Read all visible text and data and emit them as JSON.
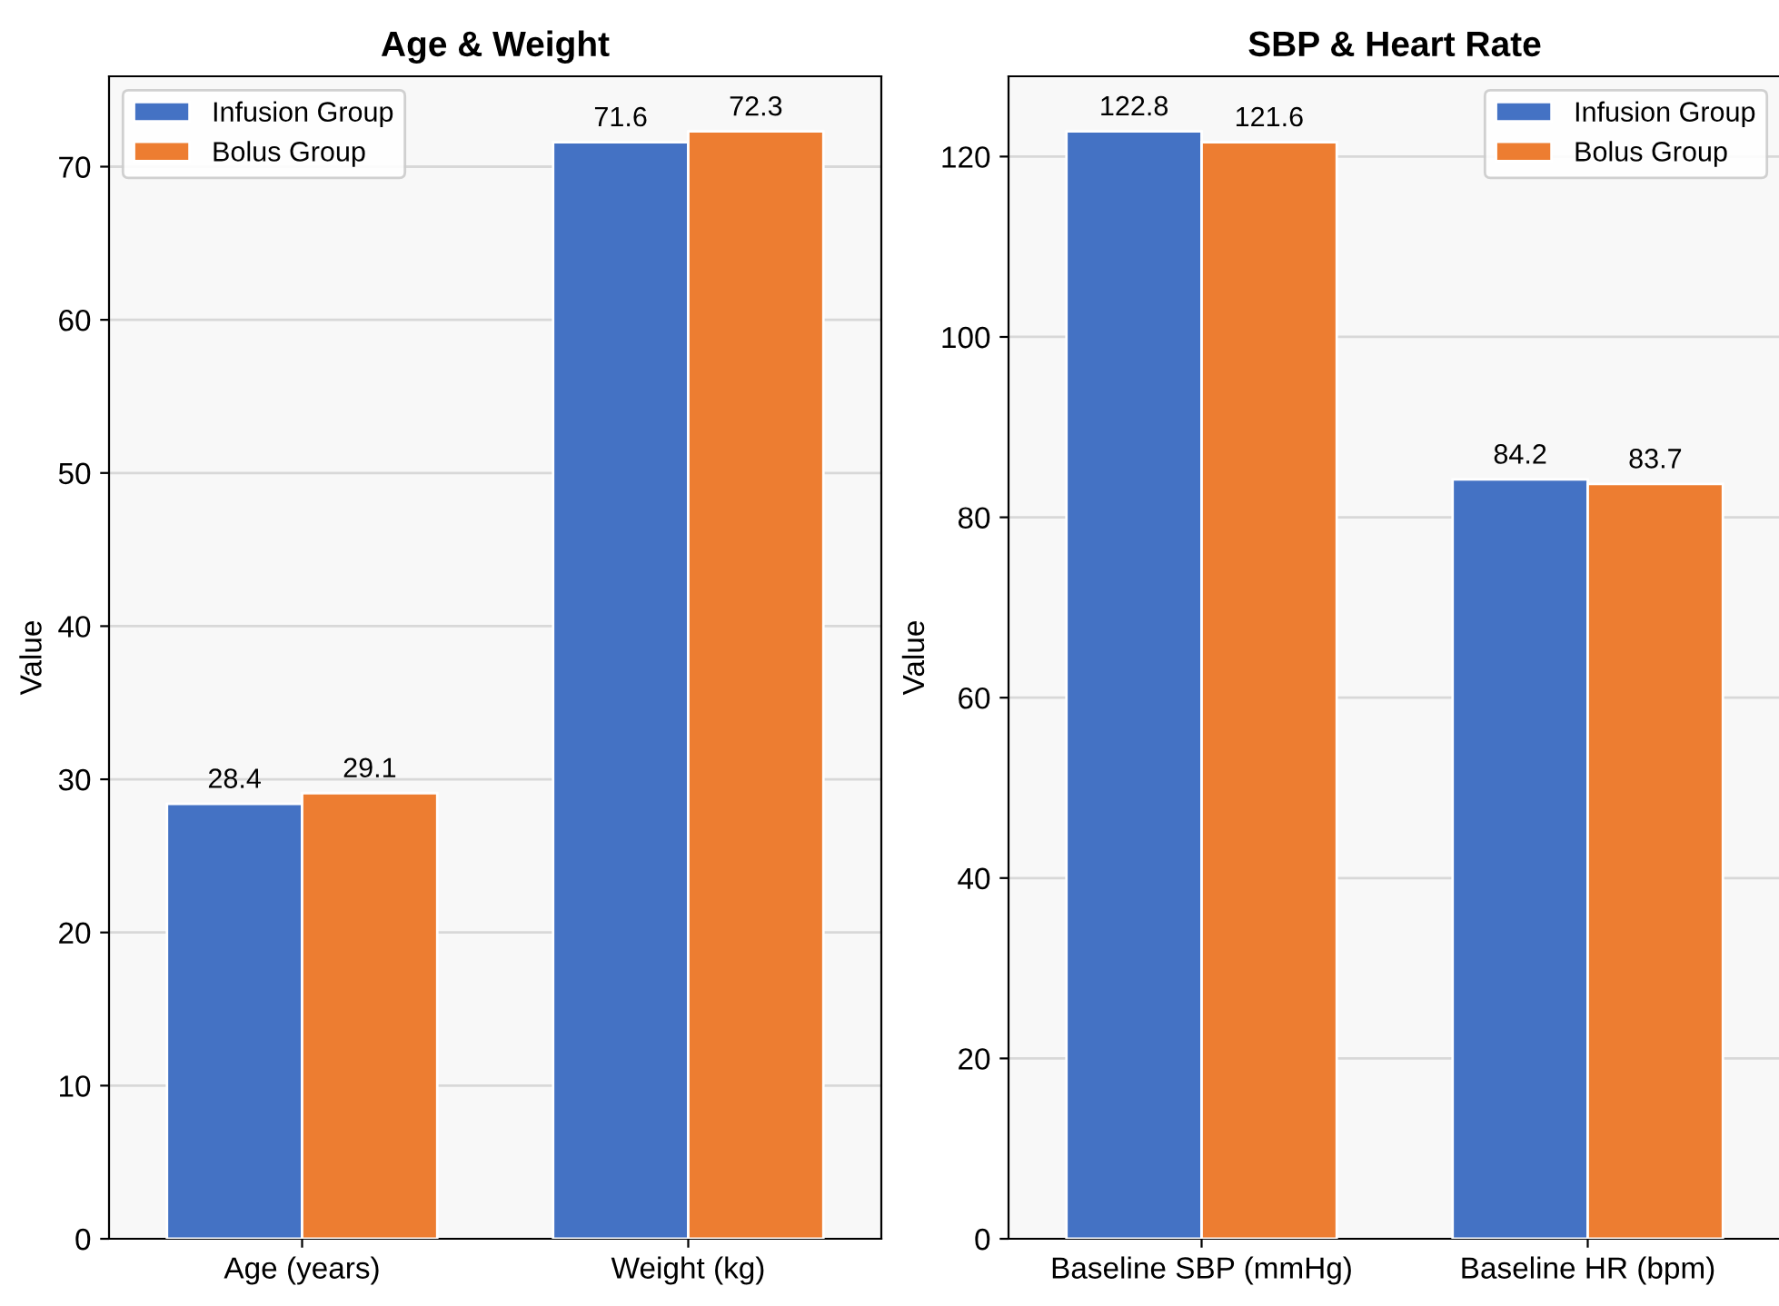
{
  "chart_data": [
    {
      "type": "bar",
      "title": "Age & Weight",
      "ylabel": "Value",
      "categories": [
        "Age (years)",
        "Weight (kg)"
      ],
      "series": [
        {
          "name": "Infusion Group",
          "color": "#4472c4",
          "values": [
            28.4,
            71.6
          ]
        },
        {
          "name": "Bolus Group",
          "color": "#ed7d31",
          "values": [
            29.1,
            72.3
          ]
        }
      ],
      "ylim": [
        0,
        75.9
      ],
      "yticks": [
        0,
        10,
        20,
        30,
        40,
        50,
        60,
        70
      ],
      "grid": "y",
      "legend": "top left",
      "data_labels": true
    },
    {
      "type": "bar",
      "title": "SBP & Heart Rate",
      "ylabel": "Value",
      "categories": [
        "Baseline SBP (mmHg)",
        "Baseline HR (bpm)"
      ],
      "series": [
        {
          "name": "Infusion Group",
          "color": "#4472c4",
          "values": [
            122.8,
            84.2
          ]
        },
        {
          "name": "Bolus Group",
          "color": "#ed7d31",
          "values": [
            121.6,
            83.7
          ]
        }
      ],
      "ylim": [
        0,
        128.9
      ],
      "yticks": [
        0,
        20,
        40,
        60,
        80,
        100,
        120
      ],
      "grid": "y",
      "legend": "top right",
      "data_labels": true
    }
  ]
}
